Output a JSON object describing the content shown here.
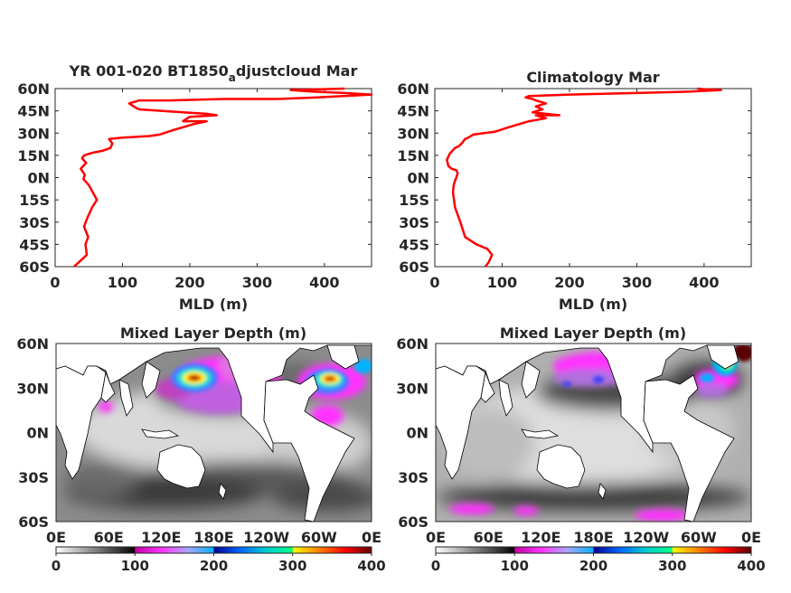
{
  "chart_data": [
    {
      "type": "line",
      "title_main": "YR 001-020 BT1850",
      "title_sub": "a",
      "title_rest": "djustcloud Mar",
      "xlabel": "MLD (m)",
      "ylabel": "",
      "xlim": [
        0,
        470
      ],
      "ylim": [
        -60,
        60
      ],
      "grid": false,
      "xticks": [
        0,
        100,
        200,
        300,
        400
      ],
      "xtick_labels": [
        "0",
        "100",
        "200",
        "300",
        "400"
      ],
      "yticks": [
        60,
        45,
        30,
        15,
        0,
        -15,
        -30,
        -45,
        -60
      ],
      "ytick_labels": [
        "60N",
        "45N",
        "30N",
        "15N",
        "0N",
        "15S",
        "30S",
        "45S",
        "60S"
      ],
      "color": "#ff0000",
      "series": [
        {
          "x": [
            28,
            40,
            47,
            45,
            49,
            43,
            48,
            55,
            62,
            56,
            50,
            42,
            44,
            38,
            46,
            40,
            43,
            50,
            58,
            70,
            82,
            85,
            80,
            100,
            140,
            155,
            175,
            205,
            225,
            190,
            200,
            240,
            225,
            190,
            125,
            120,
            110,
            125,
            170,
            250,
            330,
            390,
            470,
            430,
            380,
            350,
            430
          ],
          "y": [
            -60,
            -55,
            -52,
            -45,
            -40,
            -33,
            -27,
            -20,
            -15,
            -10,
            -5,
            -1,
            2,
            6,
            10,
            13,
            15,
            16,
            17,
            18,
            20,
            23,
            26,
            27,
            28,
            29,
            32,
            36,
            38,
            38,
            41,
            42,
            43,
            44,
            46,
            47,
            50,
            52,
            52,
            53,
            53,
            54,
            56,
            57,
            58,
            59,
            60
          ]
        }
      ]
    },
    {
      "type": "line",
      "title": "Climatology Mar",
      "xlabel": "MLD (m)",
      "ylabel": "",
      "xlim": [
        0,
        470
      ],
      "ylim": [
        -60,
        60
      ],
      "grid": false,
      "xticks": [
        0,
        100,
        200,
        300,
        400
      ],
      "xtick_labels": [
        "0",
        "100",
        "200",
        "300",
        "400"
      ],
      "yticks": [
        60,
        45,
        30,
        15,
        0,
        -15,
        -30,
        -45,
        -60
      ],
      "ytick_labels": [
        "60N",
        "45N",
        "30N",
        "15N",
        "0N",
        "15S",
        "30S",
        "45S",
        "60S"
      ],
      "color": "#ff0000",
      "series": [
        {
          "x": [
            75,
            80,
            85,
            78,
            62,
            45,
            38,
            30,
            27,
            28,
            30,
            32,
            34,
            32,
            25,
            20,
            18,
            22,
            30,
            35,
            40,
            45,
            50,
            57,
            90,
            110,
            140,
            165,
            150,
            185,
            145,
            160,
            150,
            165,
            150,
            145,
            135,
            140,
            200,
            300,
            380,
            425,
            400,
            390
          ],
          "y": [
            -60,
            -57,
            -52,
            -48,
            -45,
            -40,
            -30,
            -20,
            -10,
            -5,
            -2,
            0,
            3,
            5,
            6,
            8,
            12,
            16,
            20,
            21,
            23,
            26,
            27,
            29,
            31,
            34,
            38,
            40,
            42,
            42,
            44,
            46,
            48,
            50,
            52,
            53,
            54,
            55,
            56,
            57,
            58,
            59,
            59.5,
            60
          ]
        }
      ]
    },
    {
      "type": "heatmap",
      "title": "Mixed Layer Depth (m)",
      "xtick_labels": [
        "0E",
        "60E",
        "120E",
        "180E",
        "120W",
        "60W",
        "0E"
      ],
      "ytick_labels": [
        "60N",
        "30N",
        "0N",
        "30S",
        "60S"
      ],
      "ylim": [
        -60,
        60
      ],
      "colorbar": {
        "range": [
          0,
          400
        ],
        "ticks": [
          "0",
          "100",
          "200",
          "300",
          "400"
        ],
        "segments": [
          [
            "#ffffff",
            "#000000"
          ],
          [
            "#c000a0",
            "#ff33ff",
            "#a7a7ff",
            "#00b2ff"
          ],
          [
            "#00008f",
            "#0066ff",
            "#00cfcf",
            "#00ff80"
          ],
          [
            "#ffff00",
            "#ff8000",
            "#ff0000",
            "#5a0000"
          ]
        ]
      },
      "features": {
        "kuroshio_max": "high",
        "north_atlantic_max": "high",
        "southern_ocean_magenta": "sparse"
      }
    },
    {
      "type": "heatmap",
      "title": "Mixed Layer Depth (m)",
      "xtick_labels": [
        "0E",
        "60E",
        "120E",
        "180E",
        "120W",
        "60W",
        "0E"
      ],
      "ytick_labels": [
        "60N",
        "30N",
        "0N",
        "30S",
        "60S"
      ],
      "ylim": [
        -60,
        60
      ],
      "colorbar": {
        "range": [
          0,
          400
        ],
        "ticks": [
          "0",
          "100",
          "200",
          "300",
          "400"
        ],
        "segments": [
          [
            "#ffffff",
            "#000000"
          ],
          [
            "#c000a0",
            "#ff33ff",
            "#a7a7ff",
            "#00b2ff"
          ],
          [
            "#00008f",
            "#0066ff",
            "#00cfcf",
            "#00ff80"
          ],
          [
            "#ffff00",
            "#ff8000",
            "#ff0000",
            "#5a0000"
          ]
        ]
      },
      "features": {
        "kuroshio_max": "moderate",
        "north_atlantic_max": "high",
        "southern_ocean_magenta": "band"
      }
    }
  ]
}
